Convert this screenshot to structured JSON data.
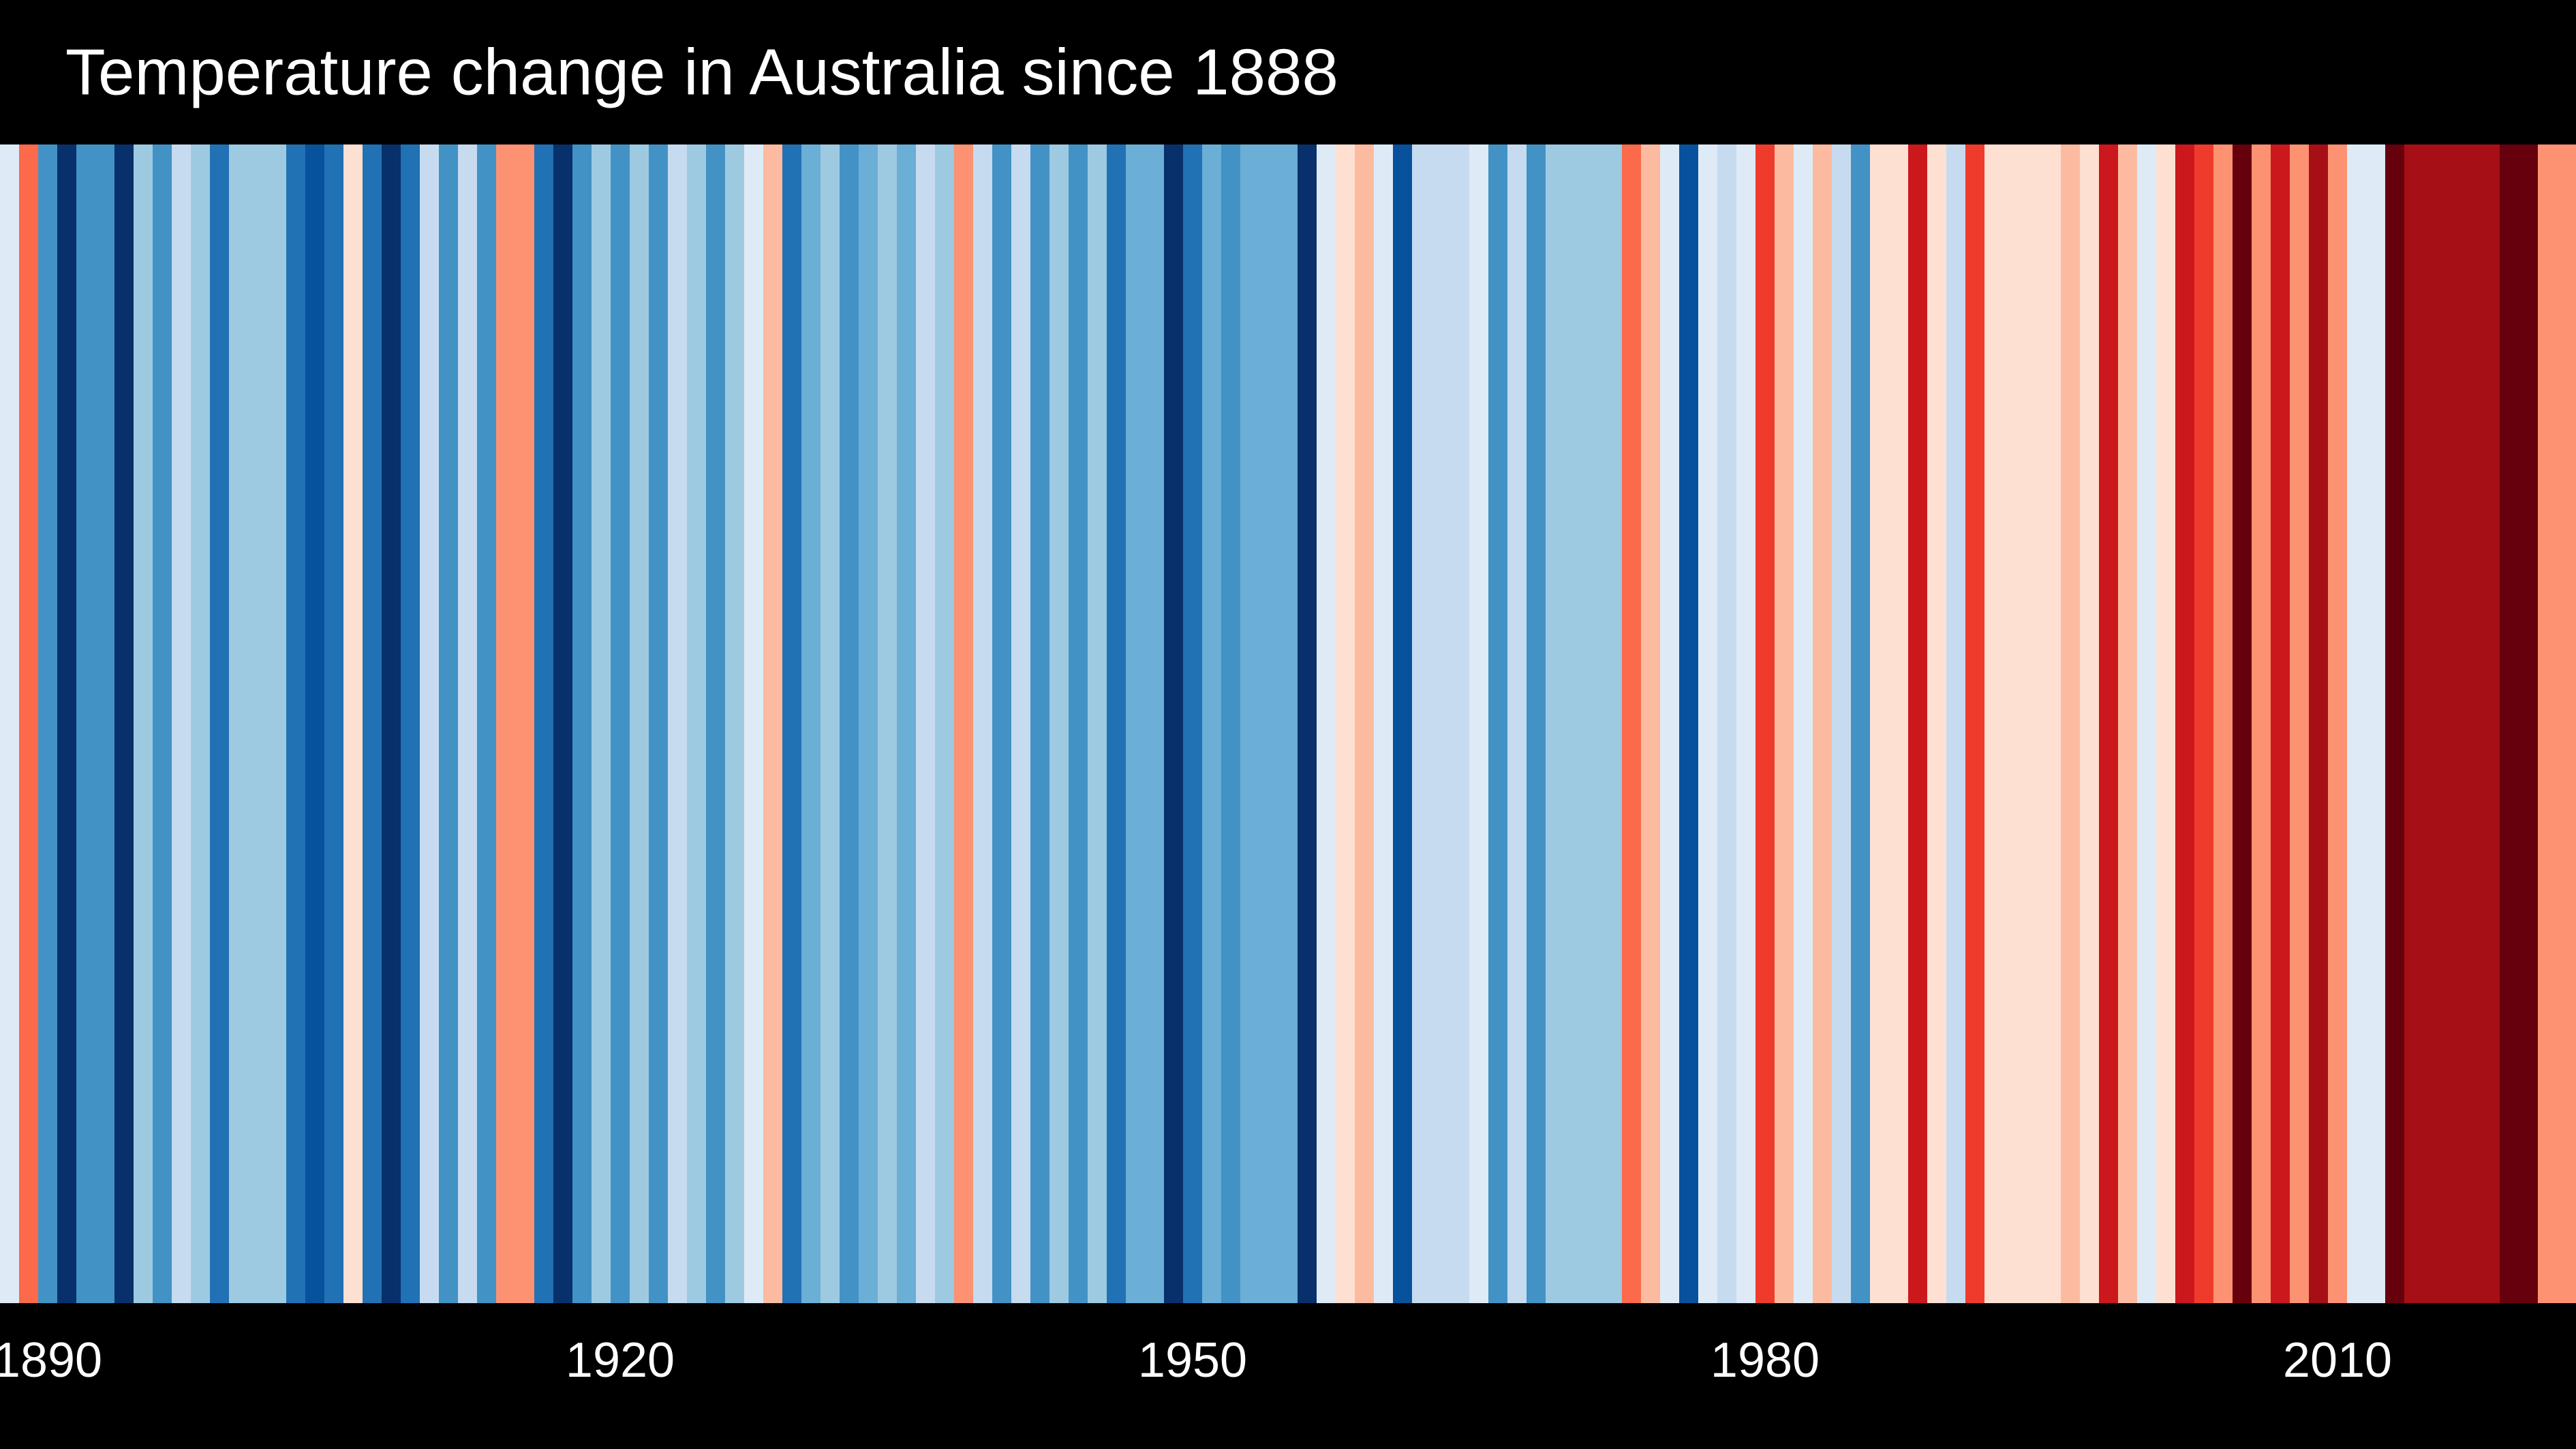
{
  "chart_data": {
    "type": "stripes",
    "title": "Temperature change in Australia since 1888",
    "x": [
      1888,
      1889,
      1890,
      1891,
      1892,
      1893,
      1894,
      1895,
      1896,
      1897,
      1898,
      1899,
      1900,
      1901,
      1902,
      1903,
      1904,
      1905,
      1906,
      1907,
      1908,
      1909,
      1910,
      1911,
      1912,
      1913,
      1914,
      1915,
      1916,
      1917,
      1918,
      1919,
      1920,
      1921,
      1922,
      1923,
      1924,
      1925,
      1926,
      1927,
      1928,
      1929,
      1930,
      1931,
      1932,
      1933,
      1934,
      1935,
      1936,
      1937,
      1938,
      1939,
      1940,
      1941,
      1942,
      1943,
      1944,
      1945,
      1946,
      1947,
      1948,
      1949,
      1950,
      1951,
      1952,
      1953,
      1954,
      1955,
      1956,
      1957,
      1958,
      1959,
      1960,
      1961,
      1962,
      1963,
      1964,
      1965,
      1966,
      1967,
      1968,
      1969,
      1970,
      1971,
      1972,
      1973,
      1974,
      1975,
      1976,
      1977,
      1978,
      1979,
      1980,
      1981,
      1982,
      1983,
      1984,
      1985,
      1986,
      1987,
      1988,
      1989,
      1990,
      1991,
      1992,
      1993,
      1994,
      1995,
      1996,
      1997,
      1998,
      1999,
      2000,
      2001,
      2002,
      2003,
      2004,
      2005,
      2006,
      2007,
      2008,
      2009,
      2010,
      2011,
      2012,
      2013,
      2014,
      2015,
      2016,
      2017,
      2018,
      2019,
      2020,
      2021,
      2022
    ],
    "values": [
      -0.05,
      0.35,
      -0.45,
      -0.75,
      -0.45,
      -0.45,
      -0.75,
      -0.25,
      -0.45,
      -0.15,
      -0.25,
      -0.55,
      -0.25,
      -0.25,
      -0.25,
      -0.55,
      -0.65,
      -0.55,
      0.05,
      -0.55,
      -0.75,
      -0.55,
      -0.15,
      -0.45,
      -0.15,
      -0.45,
      0.25,
      0.25,
      -0.55,
      -0.75,
      -0.45,
      -0.25,
      -0.45,
      -0.25,
      -0.45,
      -0.15,
      -0.25,
      -0.45,
      -0.25,
      -0.05,
      0.15,
      -0.55,
      -0.35,
      -0.25,
      -0.45,
      -0.35,
      -0.25,
      -0.35,
      -0.15,
      -0.25,
      0.25,
      -0.15,
      -0.45,
      -0.15,
      -0.45,
      -0.25,
      -0.45,
      -0.25,
      -0.55,
      -0.35,
      -0.35,
      -0.75,
      -0.55,
      -0.35,
      -0.45,
      -0.35,
      -0.35,
      -0.35,
      -0.75,
      -0.05,
      0.05,
      0.15,
      -0.05,
      -0.65,
      -0.15,
      -0.15,
      -0.15,
      -0.05,
      -0.45,
      -0.15,
      -0.45,
      -0.25,
      -0.25,
      -0.25,
      -0.25,
      0.35,
      0.15,
      -0.05,
      -0.65,
      -0.05,
      -0.15,
      -0.05,
      0.45,
      0.15,
      -0.05,
      0.15,
      -0.15,
      -0.45,
      0.05,
      0.05,
      0.55,
      0.05,
      -0.15,
      0.45,
      0.05,
      0.05,
      0.05,
      0.05,
      0.15,
      0.05,
      0.55,
      0.15,
      -0.05,
      0.05,
      0.55,
      0.45,
      0.25,
      0.75,
      0.25,
      0.55,
      0.25,
      0.65,
      0.25,
      -0.05,
      -0.05,
      0.75,
      0.65,
      0.65,
      0.65,
      0.65,
      0.65,
      0.75,
      0.75,
      0.25,
      0.25
    ],
    "vlim": [
      -0.8,
      0.8
    ],
    "colors": [
      "#08306b",
      "#08519c",
      "#2171b5",
      "#4292c6",
      "#6baed6",
      "#9ecae1",
      "#c6dbef",
      "#deebf7",
      "#fee0d2",
      "#fcbba1",
      "#fc9272",
      "#fb6a4a",
      "#ef3b2c",
      "#cb181d",
      "#a50f15",
      "#67000d"
    ],
    "xlim": [
      1887.5,
      2022.5
    ],
    "xticks": [
      1890,
      1920,
      1950,
      1980,
      2010
    ]
  }
}
